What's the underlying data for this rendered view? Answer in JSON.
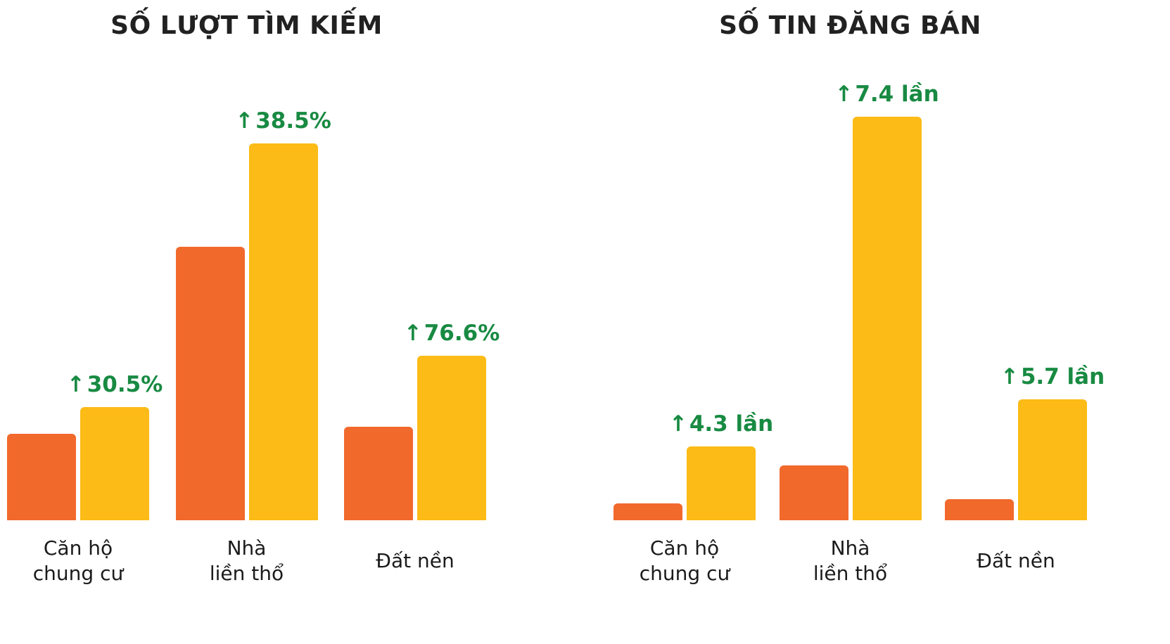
{
  "colors": {
    "orange": "#F2692C",
    "yellow": "#FCBB16",
    "green": "#188A42",
    "title": "#212121",
    "label": "#1B1B1B"
  },
  "charts": [
    {
      "title": "SỐ LƯỢT TÌM KIẾM",
      "groups": [
        {
          "label_lines": [
            "Căn hộ",
            "chung cư"
          ],
          "arrow": "↑",
          "annotation": "30.5%"
        },
        {
          "label_lines": [
            "Nhà",
            "liền thổ"
          ],
          "arrow": "↑",
          "annotation": "38.5%"
        },
        {
          "label_lines": [
            "Đất nền"
          ],
          "arrow": "↑",
          "annotation": "76.6%"
        }
      ]
    },
    {
      "title": "SỐ TIN ĐĂNG BÁN",
      "groups": [
        {
          "label_lines": [
            "Căn hộ",
            "chung cư"
          ],
          "arrow": "↑",
          "annotation": "4.3 lần"
        },
        {
          "label_lines": [
            "Nhà",
            "liền thổ"
          ],
          "arrow": "↑",
          "annotation": "7.4 lần"
        },
        {
          "label_lines": [
            "Đất nền"
          ],
          "arrow": "↑",
          "annotation": "5.7 lần"
        }
      ]
    }
  ],
  "chart_data": [
    {
      "type": "bar",
      "title": "SỐ LƯỢT TÌM KIẾM",
      "categories": [
        "Căn hộ chung cư",
        "Nhà liền thổ",
        "Đất nền"
      ],
      "series": [
        {
          "name": "orange",
          "color": "#F2692C",
          "values": [
            123,
            389,
            133
          ]
        },
        {
          "name": "yellow",
          "color": "#FCBB16",
          "values": [
            161,
            536,
            234
          ]
        }
      ],
      "annotations": [
        "↑30.5%",
        "↑38.5%",
        "↑76.6%"
      ],
      "annotation_meaning": "yellow vs orange growth",
      "value_units": "relative height (no value axis shown)",
      "grid": false,
      "legend": false
    },
    {
      "type": "bar",
      "title": "SỐ TIN ĐĂNG BÁN",
      "categories": [
        "Căn hộ chung cư",
        "Nhà liền thổ",
        "Đất nền"
      ],
      "series": [
        {
          "name": "orange",
          "color": "#F2692C",
          "values": [
            24,
            77,
            30
          ]
        },
        {
          "name": "yellow",
          "color": "#FCBB16",
          "values": [
            104,
            570,
            171
          ]
        }
      ],
      "annotations": [
        "↑4.3 lần",
        "↑7.4 lần",
        "↑5.7 lần"
      ],
      "annotation_meaning": "yellow vs orange growth multiple",
      "value_units": "relative height (no value axis shown)",
      "grid": false,
      "legend": false
    }
  ]
}
